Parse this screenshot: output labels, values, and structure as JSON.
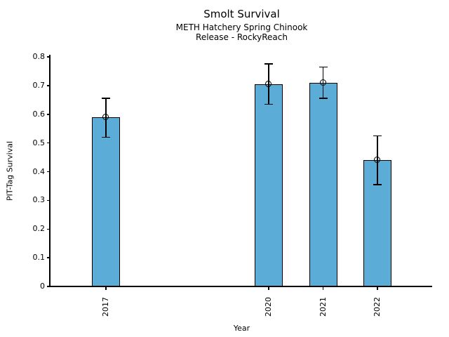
{
  "chart_data": {
    "type": "bar",
    "title": "Smolt Survival",
    "subtitle1": "METH Hatchery Spring Chinook",
    "subtitle2": "Release - RockyReach",
    "xlabel": "Year",
    "ylabel": "PIT-Tag Survival",
    "categories": [
      "2017",
      "2020",
      "2021",
      "2022"
    ],
    "x_values": [
      2017,
      2020,
      2021,
      2022
    ],
    "values": [
      0.59,
      0.705,
      0.71,
      0.44
    ],
    "error_low": [
      0.52,
      0.635,
      0.655,
      0.355
    ],
    "error_high": [
      0.655,
      0.775,
      0.765,
      0.525
    ],
    "ylim": [
      0,
      0.8
    ],
    "xlim": [
      2016,
      2023
    ],
    "ytick_values": [
      0,
      0.1,
      0.2,
      0.3,
      0.4,
      0.5,
      0.6,
      0.7,
      0.8
    ],
    "ytick_labels": [
      "0",
      "0.1",
      "0.2",
      "0.3",
      "0.4",
      "0.5",
      "0.6",
      "0.7",
      "0.8"
    ],
    "grid": false,
    "legend": "none",
    "bar_width_years": 0.5,
    "marker": "open-circle",
    "colors": {
      "bar_fill": "#5BACD6",
      "bar_edge": "#000000",
      "error_bar": "#000000",
      "axis": "#000000",
      "text": "#000000",
      "background": "#FFFFFF"
    }
  }
}
